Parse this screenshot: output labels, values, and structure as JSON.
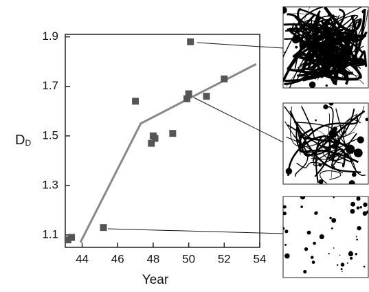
{
  "chart_data": {
    "type": "scatter",
    "x_label": "Year",
    "y_label": "D",
    "y_label_subscript": "D",
    "xlim": [
      43.05,
      54
    ],
    "xticks": [
      44,
      46,
      48,
      50,
      52,
      54
    ],
    "ylim": [
      1.05,
      1.91
    ],
    "yticks": [
      1.1,
      1.3,
      1.5,
      1.7,
      1.9
    ],
    "series": [
      {
        "type": "scatter",
        "color": "#555555",
        "x": [
          43.2,
          43.4,
          45.2,
          47.0,
          48.0,
          47.9,
          48.1,
          49.1,
          50.1,
          50.0,
          49.9,
          51.0,
          52.0
        ],
        "values": [
          1.08,
          1.09,
          1.13,
          1.64,
          1.5,
          1.47,
          1.49,
          1.51,
          1.88,
          1.67,
          1.65,
          1.66,
          1.73
        ]
      },
      {
        "type": "line",
        "color": "#888888",
        "x": [
          43.9,
          47.3,
          50.0,
          53.8
        ],
        "values": [
          1.07,
          1.55,
          1.65,
          1.79
        ]
      }
    ]
  }
}
